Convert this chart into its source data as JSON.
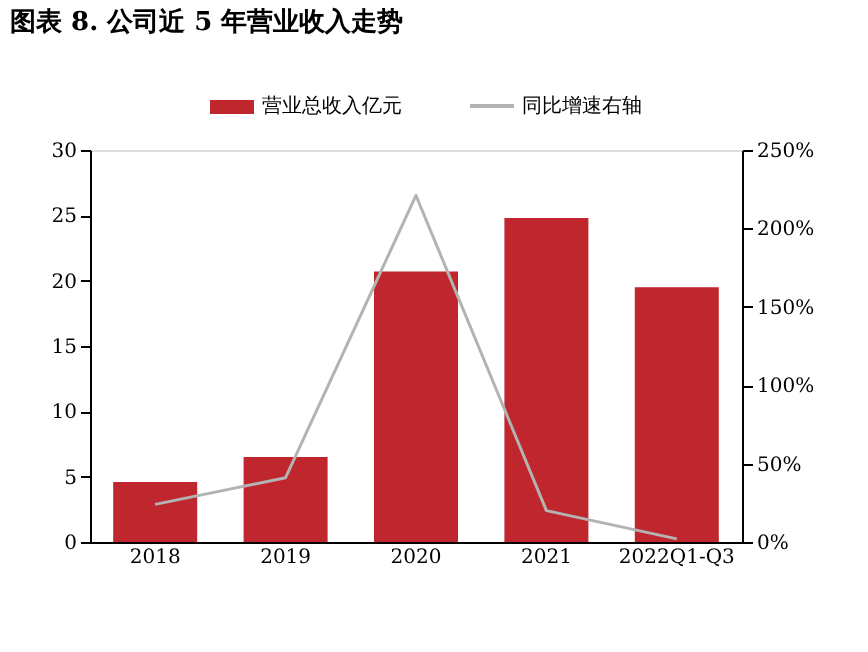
{
  "chart_data": {
    "type": "bar",
    "title": "图表 8.  公司近 5 年营业收入走势",
    "categories": [
      "2018",
      "2019",
      "2020",
      "2021",
      "2022Q1-Q3"
    ],
    "series": [
      {
        "name": "营业总收入亿元",
        "color": "#c0262d",
        "values": [
          4.6,
          6.5,
          20.7,
          24.8,
          19.5
        ]
      },
      {
        "name": "同比增速右轴",
        "type": "line",
        "axis": "y2",
        "color": "#b3b3b3",
        "values": [
          24,
          41,
          221,
          20,
          2
        ]
      }
    ],
    "ylim": [
      0,
      30
    ],
    "yticks": [
      0,
      5,
      10,
      15,
      20,
      25,
      30
    ],
    "y2lim": [
      0,
      250
    ],
    "y2ticks": [
      {
        "value": 0,
        "label": "0%"
      },
      {
        "value": 50,
        "label": "50%"
      },
      {
        "value": 100,
        "label": "100%"
      },
      {
        "value": 150,
        "label": "150%"
      },
      {
        "value": 200,
        "label": "200%"
      },
      {
        "value": 250,
        "label": "250%"
      }
    ],
    "legend": "top",
    "grid": false
  }
}
